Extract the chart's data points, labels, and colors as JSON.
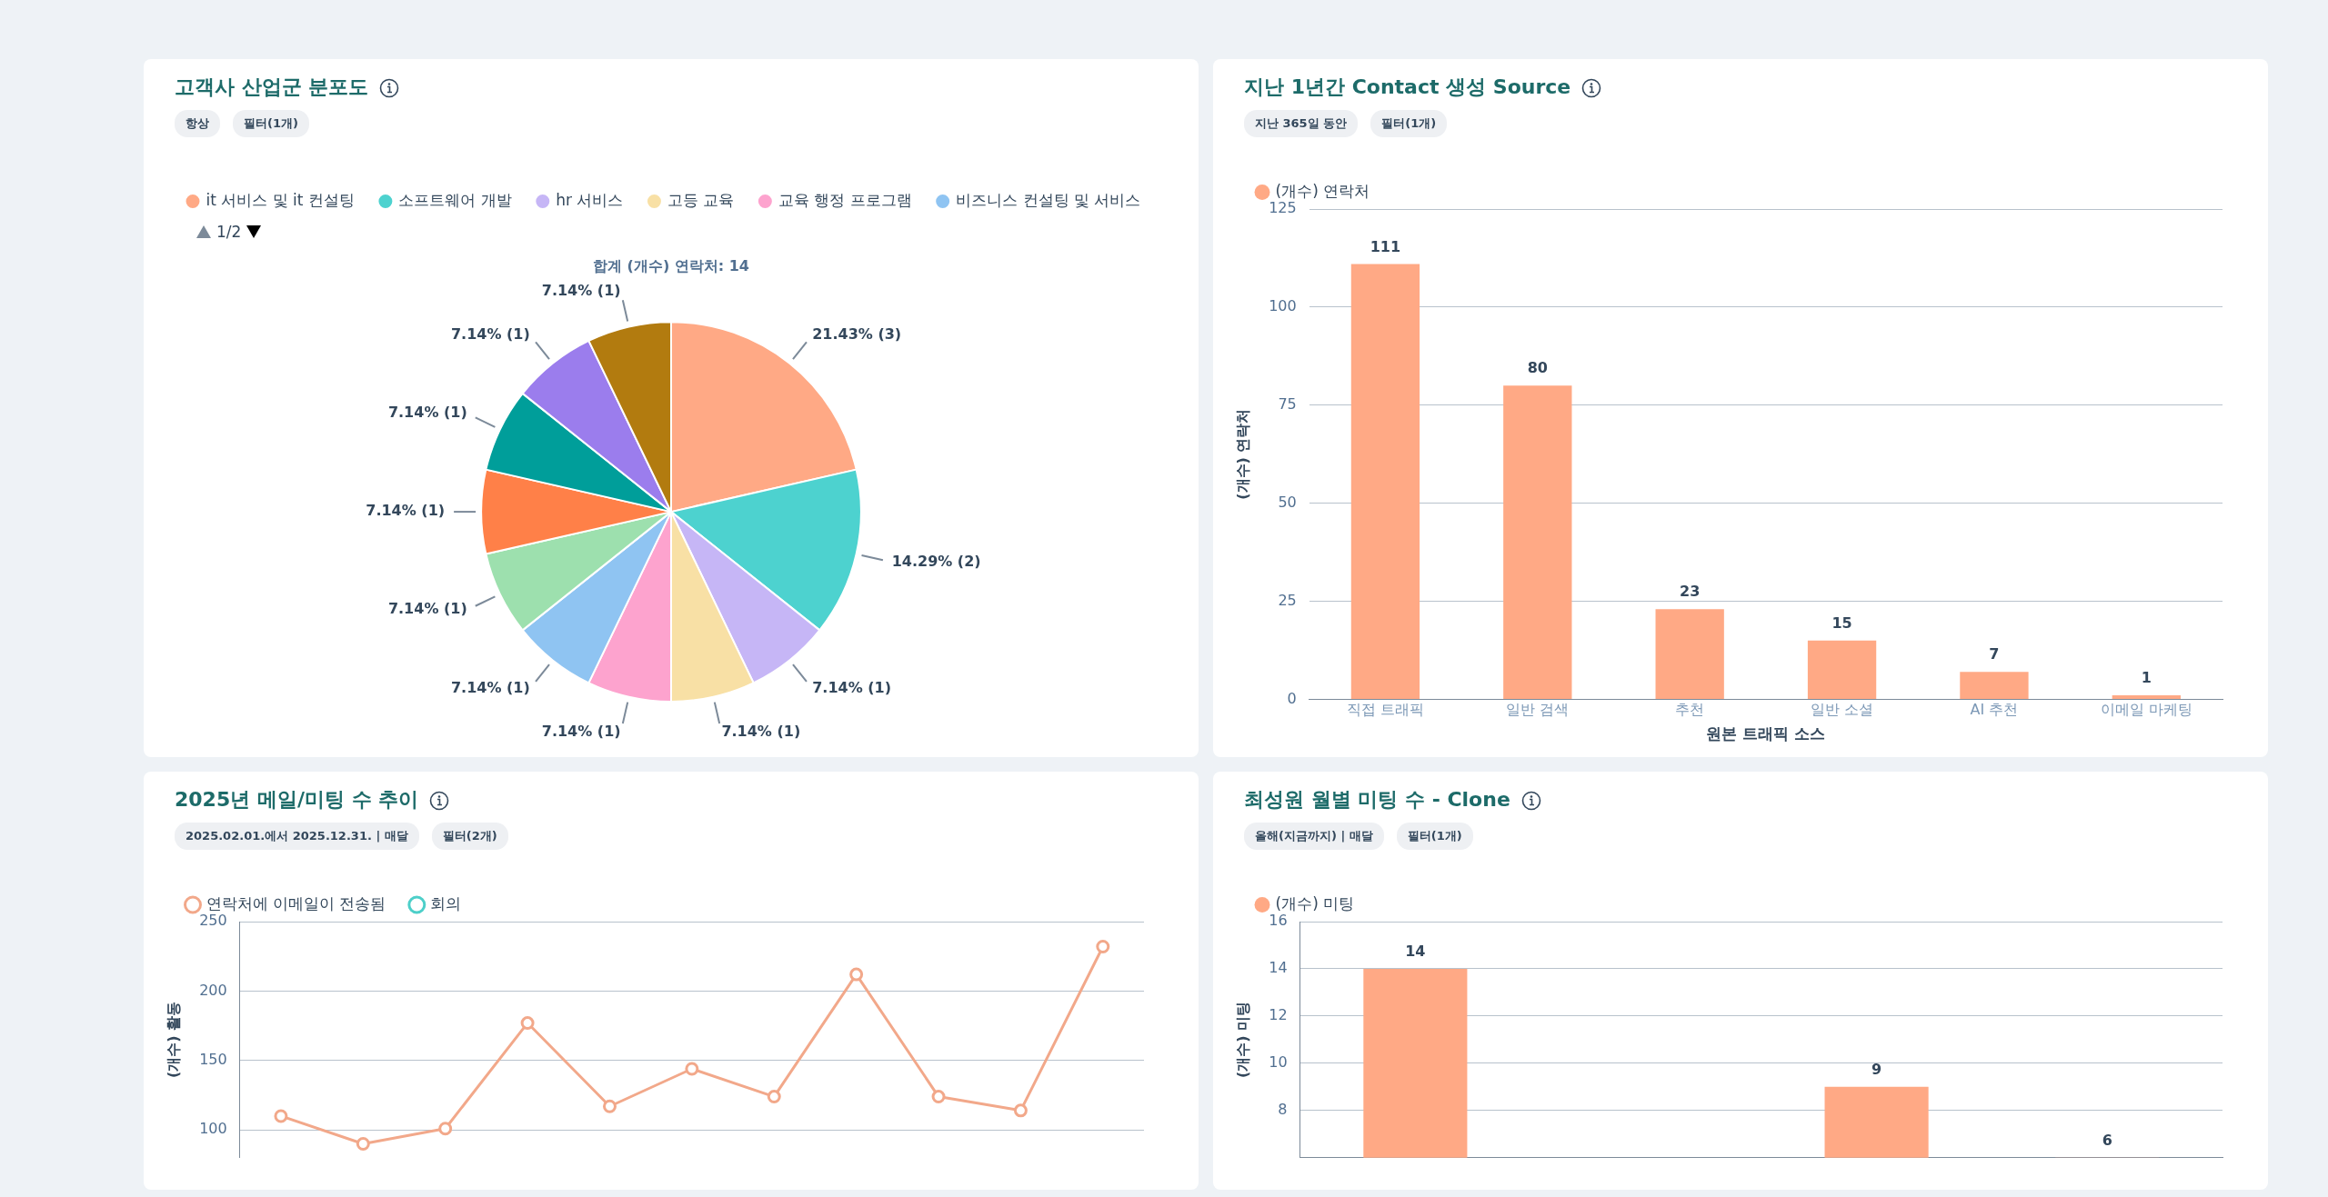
{
  "chart_data": [
    {
      "type": "pie",
      "title": "고객사 산업군 분포도",
      "subtitle": "합계 (개수) 연락처: 14",
      "annotations": [
        "항상",
        "필터(1개)",
        "1/2"
      ],
      "legend": "top left",
      "categories": [
        "it 서비스 및 it 컨설팅",
        "소프트웨어 개발",
        "hr 서비스",
        "고등 교육",
        "교육 행정 프로그램",
        "비즈니스 컨설팅 및 서비스",
        null,
        null,
        null,
        null,
        null
      ],
      "values": [
        3,
        2,
        1,
        1,
        1,
        1,
        1,
        1,
        1,
        1,
        1
      ],
      "colors": [
        "#ffa985",
        "#4dd2cf",
        "#c6b6f6",
        "#f8e0a5",
        "#fda3ce",
        "#8fc4f2",
        "#9de0ae",
        "#ff8048",
        "#009e9a",
        "#9b7ded",
        "#b27b0f"
      ],
      "value_labels": [
        "21.43% (3)",
        "14.29% (2)",
        "7.14% (1)",
        "7.14% (1)",
        "7.14% (1)",
        "7.14% (1)",
        "7.14% (1)",
        "7.14% (1)",
        "7.14% (1)",
        "7.14% (1)",
        "7.14% (1)"
      ]
    },
    {
      "type": "bar",
      "title": "지난 1년간 Contact 생성 Source",
      "annotations": [
        "지난 365일 동안",
        "필터(1개)"
      ],
      "legend": "top left",
      "grid": "y",
      "data_labels": true,
      "xlabel": "원본 트래픽 소스",
      "ylabel": "(개수) 연락처",
      "ylim": [
        0,
        125
      ],
      "yticks": [
        0,
        25,
        50,
        75,
        100,
        125
      ],
      "categories": [
        "직접 트래픽",
        "일반 검색",
        "추천",
        "일반 소셜",
        "AI 추천",
        "이메일 마케팅"
      ],
      "series": [
        {
          "name": "(개수) 연락처",
          "color": "#ffa985",
          "values": [
            111,
            80,
            23,
            15,
            7,
            1
          ]
        }
      ]
    },
    {
      "type": "line",
      "title": "2025년 메일/미팅 수 추이",
      "annotations": [
        "2025.02.01.에서 2025.12.31. | 매달",
        "필터(2개)"
      ],
      "legend": "top left",
      "grid": "y",
      "marker": "circle",
      "ylabel": "(개수) 활동",
      "ylim": [
        80,
        250
      ],
      "yticks": [
        100,
        150,
        200,
        250
      ],
      "categories": [
        null,
        null,
        null,
        null,
        null,
        null,
        null,
        null,
        null,
        null,
        null
      ],
      "series": [
        {
          "name": "연락처에 이메일이 전송됨",
          "color": "#f2a88a",
          "values": [
            110,
            90,
            101,
            177,
            117,
            144,
            124,
            212,
            124,
            114,
            232
          ]
        },
        {
          "name": "회의",
          "color": "#4dcfc9",
          "values": [
            null,
            null,
            null,
            null,
            null,
            null,
            null,
            null,
            null,
            null,
            null
          ]
        }
      ]
    },
    {
      "type": "bar",
      "title": "최성원 월별 미팅 수 - Clone",
      "annotations": [
        "올해(지금까지) | 매달",
        "필터(1개)"
      ],
      "legend": "top left",
      "grid": "y",
      "data_labels": true,
      "ylabel": "(개수) 미팅",
      "ylim": [
        6,
        16
      ],
      "yticks": [
        8,
        10,
        12,
        14,
        16
      ],
      "categories": [
        null,
        null,
        null,
        null
      ],
      "series": [
        {
          "name": "(개수) 미팅",
          "color": "#ffa985",
          "values": [
            14,
            null,
            9,
            6
          ]
        }
      ]
    }
  ]
}
